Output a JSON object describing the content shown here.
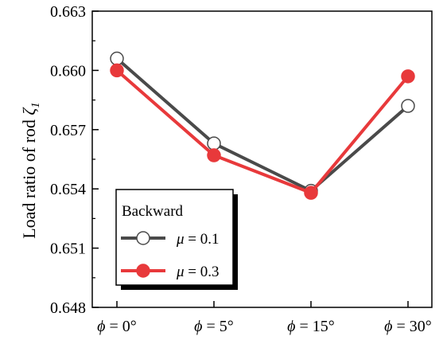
{
  "chart_data": {
    "type": "line",
    "title": "",
    "ylabel": "Load ratio of rod",
    "ylabel_symbol": "ζ",
    "ylabel_subscript": "1",
    "categories": [
      {
        "sym": "ϕ",
        "rest": " = 0°"
      },
      {
        "sym": "ϕ",
        "rest": " = 5°"
      },
      {
        "sym": "ϕ",
        "rest": " = 15°"
      },
      {
        "sym": "ϕ",
        "rest": " = 30°"
      }
    ],
    "ylim": [
      0.648,
      0.663
    ],
    "yticks": [
      "0.648",
      "0.651",
      "0.654",
      "0.657",
      "0.660",
      "0.663"
    ],
    "legend": {
      "title": "Backward",
      "placement": "bottom-left"
    },
    "series": [
      {
        "key": "mu01",
        "sym": "μ",
        "rest": " = 0.1",
        "color": "#4a4a4a",
        "marker": "open-circle",
        "values": [
          0.6606,
          0.6563,
          0.6539,
          0.6582
        ]
      },
      {
        "key": "mu03",
        "sym": "μ",
        "rest": " = 0.3",
        "color": "#e8393b",
        "marker": "filled-circle",
        "values": [
          0.66,
          0.6557,
          0.6538,
          0.6597
        ]
      }
    ]
  }
}
